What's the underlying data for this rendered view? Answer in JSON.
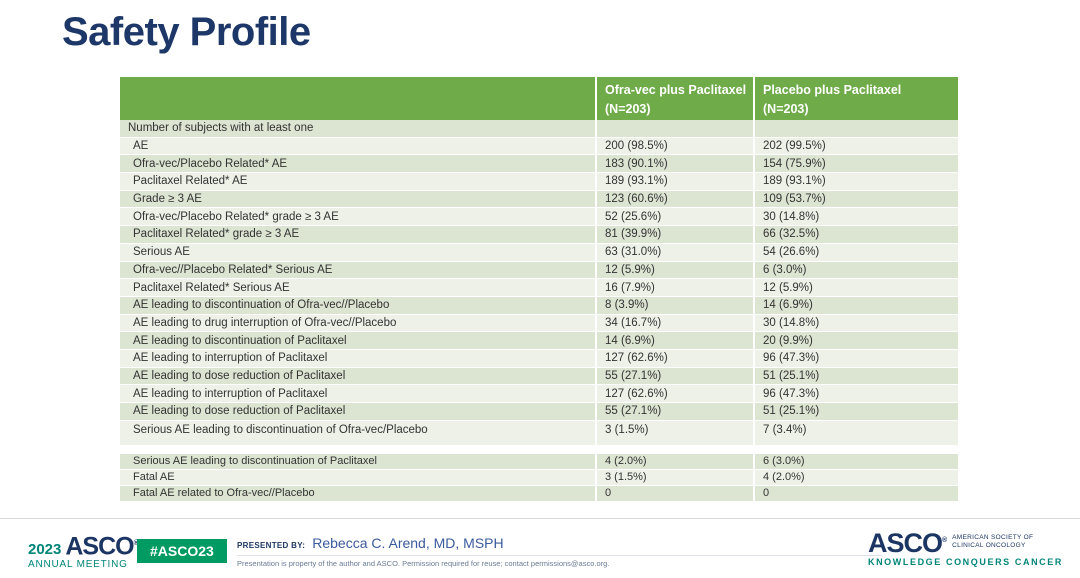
{
  "title": "Safety Profile",
  "table": {
    "column_headers": [
      {
        "name": "Ofra-vec plus Paclitaxel",
        "n": "(N=203)"
      },
      {
        "name": "Placebo plus Paclitaxel",
        "n": "(N=203)"
      }
    ],
    "rows": [
      {
        "label": "Number of subjects with at least one",
        "ofra_vec": "",
        "placebo": ""
      },
      {
        "label": "AE",
        "ofra_vec": "200 (98.5%)",
        "placebo": "202 (99.5%)"
      },
      {
        "label": "Ofra-vec/Placebo Related* AE",
        "ofra_vec": "183 (90.1%)",
        "placebo": "154 (75.9%)"
      },
      {
        "label": "Paclitaxel Related* AE",
        "ofra_vec": "189 (93.1%)",
        "placebo": "189 (93.1%)"
      },
      {
        "label": "Grade ≥ 3 AE",
        "ofra_vec": "123 (60.6%)",
        "placebo": "109 (53.7%)"
      },
      {
        "label": "Ofra-vec/Placebo Related* grade ≥ 3 AE",
        "ofra_vec": "52 (25.6%)",
        "placebo": "30 (14.8%)"
      },
      {
        "label": "Paclitaxel Related* grade ≥ 3 AE",
        "ofra_vec": "81 (39.9%)",
        "placebo": "66 (32.5%)"
      },
      {
        "label": "Serious AE",
        "ofra_vec": "63 (31.0%)",
        "placebo": "54 (26.6%)"
      },
      {
        "label": "Ofra-vec//Placebo Related* Serious AE",
        "ofra_vec": "12 (5.9%)",
        "placebo": "6 (3.0%)"
      },
      {
        "label": "Paclitaxel Related* Serious AE",
        "ofra_vec": "16 (7.9%)",
        "placebo": "12 (5.9%)"
      },
      {
        "label": "AE leading to discontinuation of Ofra-vec//Placebo",
        "ofra_vec": "8 (3.9%)",
        "placebo": "14 (6.9%)"
      },
      {
        "label": "AE leading to drug interruption of Ofra-vec//Placebo",
        "ofra_vec": "34 (16.7%)",
        "placebo": "30 (14.8%)"
      },
      {
        "label": "AE leading to discontinuation of Paclitaxel",
        "ofra_vec": "14 (6.9%)",
        "placebo": "20 (9.9%)"
      },
      {
        "label": "AE leading to interruption of Paclitaxel",
        "ofra_vec": "127 (62.6%)",
        "placebo": "96 (47.3%)"
      },
      {
        "label": "AE leading to dose reduction of Paclitaxel",
        "ofra_vec": "55 (27.1%)",
        "placebo": "51 (25.1%)"
      },
      {
        "label": "AE leading to interruption of Paclitaxel",
        "ofra_vec": "127 (62.6%)",
        "placebo": "96 (47.3%)"
      },
      {
        "label": "AE leading to dose reduction of Paclitaxel",
        "ofra_vec": "55 (27.1%)",
        "placebo": "51 (25.1%)"
      },
      {
        "label": "Serious AE leading to discontinuation of Ofra-vec/Placebo",
        "ofra_vec": "3 (1.5%)",
        "placebo": "7 (3.4%)"
      },
      {
        "spacer": true
      },
      {
        "label": "Serious AE leading to discontinuation of Paclitaxel",
        "ofra_vec": "4 (2.0%)",
        "placebo": "6 (3.0%)"
      },
      {
        "label": "Fatal AE",
        "ofra_vec": "3 (1.5%)",
        "placebo": "4 (2.0%)"
      },
      {
        "label": "Fatal AE related to Ofra-vec//Placebo",
        "ofra_vec": "0",
        "placebo": "0"
      }
    ]
  },
  "footer": {
    "meeting_year": "2023",
    "meeting_org": "ASCO",
    "reg": "®",
    "meeting_name": "ANNUAL MEETING",
    "hashtag": "#ASCO23",
    "presented_by_label": "PRESENTED BY:",
    "presenter": "Rebecca C. Arend, MD, MSPH",
    "disclaimer": "Presentation is property of the author and ASCO. Permission required for reuse; contact permissions@asco.org.",
    "org_name": "ASCO",
    "org_subtitle_line1": "AMERICAN SOCIETY OF",
    "org_subtitle_line2": "CLINICAL ONCOLOGY",
    "org_tagline": "KNOWLEDGE CONQUERS CANCER"
  },
  "colors": {
    "header_green": "#6fab49",
    "row_dark": "#dce4d2",
    "row_light": "#edf1e7",
    "title_navy": "#1d3868",
    "footer_navy": "#1c3664",
    "footer_teal": "#008578",
    "badge_green": "#009b62"
  }
}
